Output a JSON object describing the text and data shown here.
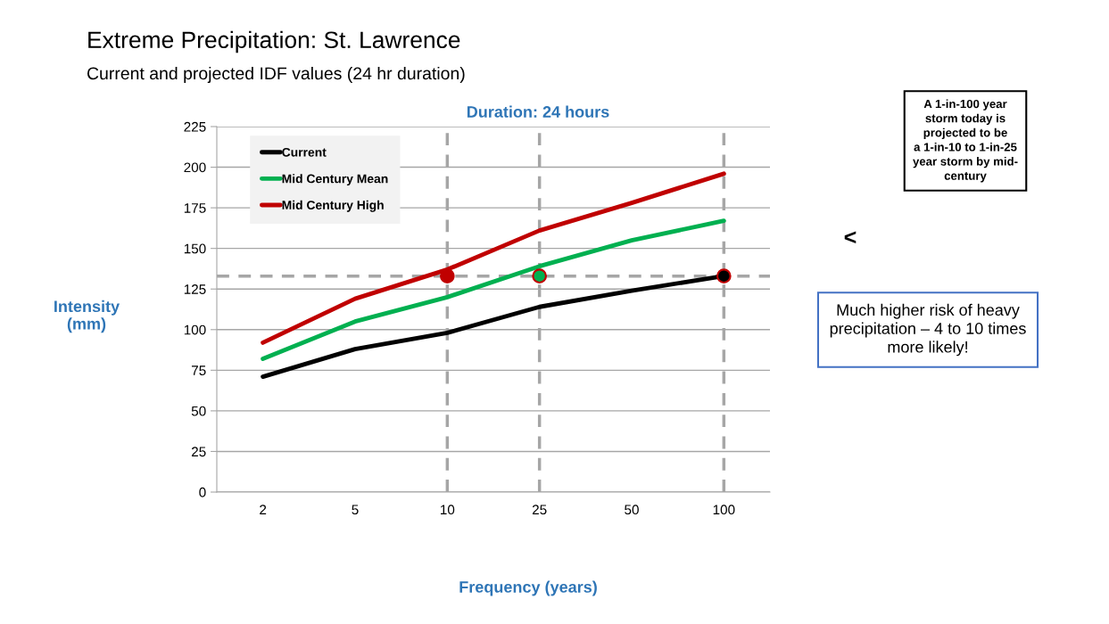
{
  "chart_data": {
    "type": "line",
    "title": "Extreme Precipitation: St. Lawrence",
    "subtitle": "Current and projected IDF values (24 hr duration)",
    "xlabel": "Frequency (years)",
    "ylabel": "Intensity\n(mm)",
    "categories": [
      "2",
      "5",
      "10",
      "25",
      "50",
      "100"
    ],
    "ylim": [
      0,
      225
    ],
    "yticks": [
      0,
      25,
      50,
      75,
      100,
      125,
      150,
      175,
      200,
      225
    ],
    "series": [
      {
        "name": "Current",
        "color": "#000000",
        "values": [
          71,
          88,
          98,
          114,
          124,
          133
        ]
      },
      {
        "name": "Mid Century Mean",
        "color": "#00b050",
        "values": [
          82,
          105,
          120,
          139,
          155,
          167
        ]
      },
      {
        "name": "Mid Century High",
        "color": "#c00000",
        "values": [
          92,
          119,
          137,
          161,
          178,
          196
        ]
      },
      {
        "type": "scatter",
        "marker": "circle",
        "x": [
          "10",
          "25",
          "100"
        ],
        "colors": [
          "#c00000",
          "#00b050",
          "#000000"
        ],
        "values": [
          133,
          133,
          133
        ]
      }
    ],
    "ref_lines": [
      {
        "axis": "y",
        "value": 133,
        "color": "#a6a6a6",
        "line_style": "dashed"
      },
      {
        "axis": "x",
        "value": "10",
        "color": "#a6a6a6",
        "line_style": "dashed"
      },
      {
        "axis": "x",
        "value": "25",
        "color": "#a6a6a6",
        "line_style": "dashed"
      },
      {
        "axis": "x",
        "value": "100",
        "color": "#a6a6a6",
        "line_style": "dashed"
      }
    ],
    "annotations": [
      "Duration: 24 hours",
      "A 1-in-100 year\nstorm today is\nprojected to be\na 1-in-10 to 1-in-25\nyear storm by mid-\ncentury",
      "<",
      "Much higher risk of heavy\nprecipitation – 4 to 10 times\nmore likely!"
    ],
    "grid": "y",
    "legend": "top left",
    "marker": "none",
    "line_style": "solid"
  }
}
